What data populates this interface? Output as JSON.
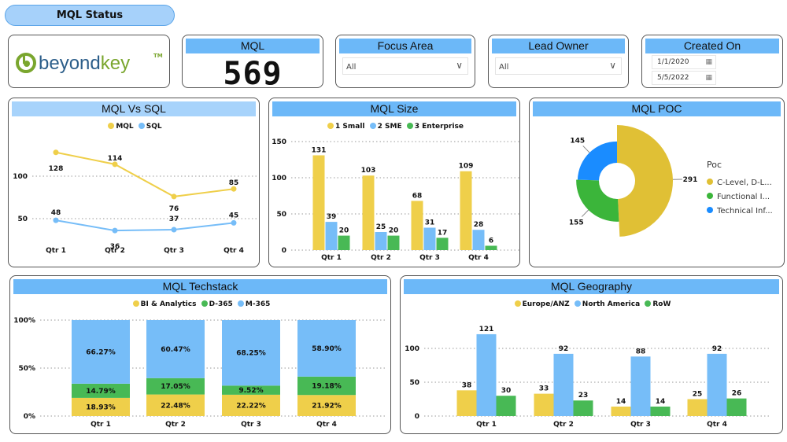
{
  "title": "MQL Status",
  "logo": {
    "text": "beyondkey",
    "tm": "TM"
  },
  "kpi": {
    "label": "MQL",
    "value": "569"
  },
  "filters": {
    "focus_area": {
      "label": "Focus Area",
      "value": "All"
    },
    "lead_owner": {
      "label": "Lead Owner",
      "value": "All"
    },
    "created_on": {
      "label": "Created On",
      "start": "1/1/2020",
      "end": "5/5/2022"
    }
  },
  "colors": {
    "yellow": "#efcf4a",
    "blue": "#76bdf8",
    "green": "#48b955",
    "poc_yellow": "#e0c035",
    "poc_green": "#3bb53a",
    "poc_blue": "#1a8cff",
    "header": "#6cb8f8"
  },
  "chart_data": [
    {
      "id": "mql_vs_sql",
      "type": "line",
      "title": "MQL Vs SQL",
      "categories": [
        "Qtr 1",
        "Qtr 2",
        "Qtr 3",
        "Qtr 4"
      ],
      "yticks": [
        "50",
        "100"
      ],
      "series": [
        {
          "name": "MQL",
          "values": [
            128,
            114,
            76,
            85
          ]
        },
        {
          "name": "SQL",
          "values": [
            48,
            36,
            37,
            45
          ]
        }
      ],
      "grid": true,
      "legend": "top"
    },
    {
      "id": "mql_size",
      "type": "bar",
      "title": "MQL Size",
      "categories": [
        "Qtr 1",
        "Qtr 2",
        "Qtr 3",
        "Qtr 4"
      ],
      "yticks": [
        "0",
        "50",
        "100",
        "150"
      ],
      "series": [
        {
          "name": "1 Small",
          "values": [
            131,
            103,
            68,
            109
          ]
        },
        {
          "name": "2 SME",
          "values": [
            39,
            25,
            31,
            28
          ]
        },
        {
          "name": "3 Enterprise",
          "values": [
            20,
            20,
            17,
            6
          ]
        }
      ],
      "grid": true,
      "legend": "top"
    },
    {
      "id": "mql_poc",
      "type": "pie",
      "title": "MQL POC",
      "legend_title": "Poc",
      "slices": [
        {
          "name": "C-Level, D-L...",
          "value": 291
        },
        {
          "name": "Functional I...",
          "value": 155
        },
        {
          "name": "Technical Inf...",
          "value": 145
        }
      ],
      "legend": "right"
    },
    {
      "id": "mql_techstack",
      "type": "bar",
      "stacked": "100%",
      "title": "MQL Techstack",
      "categories": [
        "Qtr 1",
        "Qtr 2",
        "Qtr 3",
        "Qtr 4"
      ],
      "yticks": [
        "0%",
        "50%",
        "100%"
      ],
      "series": [
        {
          "name": "BI & Analytics",
          "values": [
            18.93,
            22.48,
            22.22,
            21.92
          ]
        },
        {
          "name": "D-365",
          "values": [
            14.79,
            17.05,
            9.52,
            19.18
          ]
        },
        {
          "name": "M-365",
          "values": [
            66.27,
            60.47,
            68.25,
            58.9
          ]
        }
      ],
      "grid": true,
      "legend": "top"
    },
    {
      "id": "mql_geography",
      "type": "bar",
      "title": "MQL Geography",
      "categories": [
        "Qtr 1",
        "Qtr 2",
        "Qtr 3",
        "Qtr 4"
      ],
      "yticks": [
        "0",
        "50",
        "100"
      ],
      "series": [
        {
          "name": "Europe/ANZ",
          "values": [
            38,
            33,
            14,
            25
          ]
        },
        {
          "name": "North America",
          "values": [
            121,
            92,
            88,
            92
          ]
        },
        {
          "name": "RoW",
          "values": [
            30,
            23,
            14,
            26
          ]
        }
      ],
      "grid": true,
      "legend": "top"
    }
  ]
}
